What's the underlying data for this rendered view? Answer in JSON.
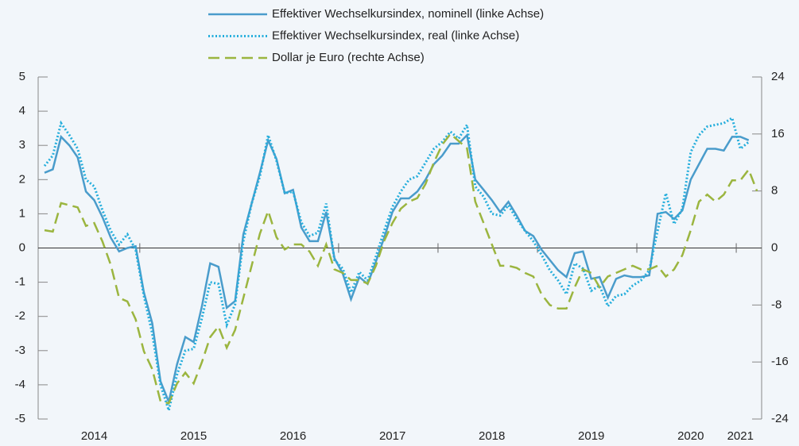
{
  "chart_data": {
    "type": "line",
    "categories": [
      null,
      null,
      null,
      null,
      null,
      null,
      "2014",
      null,
      null,
      null,
      null,
      null,
      null,
      null,
      null,
      null,
      null,
      null,
      "2015",
      null,
      null,
      null,
      null,
      null,
      null,
      null,
      null,
      null,
      null,
      null,
      "2016",
      null,
      null,
      null,
      null,
      null,
      null,
      null,
      null,
      null,
      null,
      null,
      "2017",
      null,
      null,
      null,
      null,
      null,
      null,
      null,
      null,
      null,
      null,
      null,
      "2018",
      null,
      null,
      null,
      null,
      null,
      null,
      null,
      null,
      null,
      null,
      null,
      "2019",
      null,
      null,
      null,
      null,
      null,
      null,
      null,
      null,
      null,
      null,
      null,
      "2020",
      null,
      null,
      null,
      null,
      null,
      "2021",
      null,
      null
    ],
    "series": [
      {
        "name": "Effektiver Wechselkursindex, nominell (linke Achse)",
        "color": "#4a9ccb",
        "style": "solid",
        "values": [
          2.2,
          2.3,
          3.25,
          3.0,
          2.65,
          1.65,
          1.4,
          0.9,
          0.3,
          -0.1,
          0.0,
          0.05,
          -1.3,
          -2.2,
          -3.9,
          -4.5,
          -3.4,
          -2.6,
          -2.75,
          -1.7,
          -0.45,
          -0.55,
          -1.75,
          -1.55,
          0.4,
          1.3,
          2.2,
          3.15,
          2.6,
          1.6,
          1.7,
          0.6,
          0.2,
          0.2,
          1.05,
          -0.3,
          -0.75,
          -1.5,
          -0.85,
          -1.05,
          -0.4,
          0.3,
          1.05,
          1.45,
          1.45,
          1.65,
          2.0,
          2.45,
          2.7,
          3.05,
          3.05,
          3.3,
          2.0,
          1.7,
          1.4,
          1.05,
          1.35,
          0.95,
          0.5,
          0.35,
          -0.05,
          -0.35,
          -0.65,
          -0.85,
          -0.15,
          -0.1,
          -0.9,
          -0.85,
          -1.45,
          -0.9,
          -0.8,
          -0.85,
          -0.85,
          -0.8,
          1.0,
          1.05,
          0.85,
          1.1,
          2.0,
          2.45,
          2.9,
          2.9,
          2.85,
          3.25,
          3.25,
          3.15,
          null
        ]
      },
      {
        "name": "Effektiver Wechselkursindex, real (linke Achse)",
        "color": "#25aedc",
        "style": "dotted",
        "values": [
          2.4,
          2.7,
          3.65,
          3.3,
          2.9,
          2.0,
          1.8,
          1.1,
          0.5,
          0.1,
          0.4,
          -0.05,
          -1.4,
          -2.5,
          -4.0,
          -4.75,
          -3.7,
          -3.0,
          -2.95,
          -2.05,
          -1.0,
          -1.05,
          -2.25,
          -1.65,
          0.2,
          1.3,
          2.1,
          3.3,
          2.55,
          1.6,
          1.65,
          0.75,
          0.35,
          0.45,
          1.3,
          -0.35,
          -0.6,
          -1.3,
          -0.7,
          -0.95,
          -0.25,
          0.5,
          1.2,
          1.65,
          2.0,
          2.1,
          2.5,
          2.9,
          3.1,
          3.4,
          3.2,
          3.6,
          1.8,
          1.5,
          1.0,
          0.95,
          1.25,
          0.85,
          0.5,
          0.2,
          -0.2,
          -0.65,
          -0.95,
          -1.35,
          -0.45,
          -0.6,
          -1.25,
          -1.1,
          -1.7,
          -1.4,
          -1.35,
          -1.1,
          -0.95,
          -0.65,
          0.5,
          1.6,
          0.7,
          1.15,
          2.8,
          3.3,
          3.55,
          3.6,
          3.65,
          3.8,
          2.9,
          3.1,
          null
        ]
      },
      {
        "name": "Dollar je Euro (rechte Achse)",
        "color": "#9bb53f",
        "style": "dashed",
        "axis": "y2",
        "values": [
          2.5,
          2.3,
          6.3,
          6.0,
          5.7,
          3.1,
          3.5,
          0.9,
          -2.4,
          -7.0,
          -7.5,
          -10.0,
          -14.5,
          -17.0,
          -21.5,
          -21.8,
          -19.0,
          -17.5,
          -19.0,
          -16.0,
          -12.5,
          -11.0,
          -14.0,
          -11.5,
          -7.0,
          -2.5,
          2.0,
          5.2,
          1.5,
          -0.2,
          0.5,
          0.5,
          -0.5,
          -2.5,
          0.5,
          -3.0,
          -3.5,
          -4.5,
          -4.5,
          -5.0,
          -2.5,
          1.0,
          3.5,
          5.5,
          6.5,
          7.0,
          9.0,
          12.0,
          14.5,
          16.0,
          15.0,
          14.0,
          6.5,
          3.5,
          0.5,
          -2.5,
          -2.5,
          -2.8,
          -3.5,
          -4.0,
          -6.5,
          -8.0,
          -8.5,
          -8.5,
          -5.5,
          -3.0,
          -3.5,
          -5.5,
          -4.0,
          -3.5,
          -3.0,
          -2.5,
          -3.0,
          -3.0,
          -2.5,
          -4.0,
          -3.0,
          -1.0,
          2.5,
          6.5,
          7.5,
          6.5,
          7.5,
          9.5,
          9.5,
          11.0,
          8.0
        ]
      }
    ],
    "ylim": [
      -5,
      5
    ],
    "yticks": [
      -5,
      -4,
      -3,
      -2,
      -1,
      0,
      1,
      2,
      3,
      4,
      5
    ],
    "y2lim": [
      -24,
      24
    ],
    "y2ticks": [
      -24,
      -16,
      -8,
      0,
      8,
      16,
      24
    ],
    "grid": false,
    "legend": "top"
  }
}
